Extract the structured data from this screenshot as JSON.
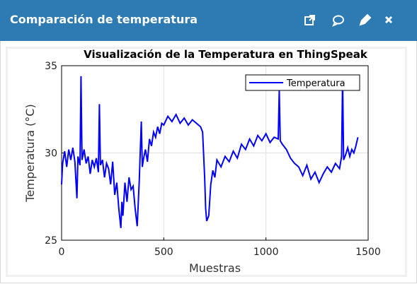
{
  "header": {
    "title": "Comparación de temperatura"
  },
  "chart_data": {
    "type": "line",
    "title": "Visualización de la Temperatura en ThingSpeak",
    "x_label": "Muestras",
    "y_label": "Temperatura (°C)",
    "xlim": [
      0,
      1500
    ],
    "xticks": [
      0,
      500,
      1000,
      1500
    ],
    "ylim": [
      25,
      35
    ],
    "yticks": [
      25,
      30,
      35
    ],
    "grid": true,
    "legend": "upper right",
    "x": [
      0,
      5,
      15,
      25,
      35,
      45,
      55,
      65,
      75,
      80,
      90,
      95,
      100,
      110,
      120,
      130,
      140,
      150,
      160,
      170,
      180,
      185,
      190,
      200,
      210,
      220,
      230,
      240,
      250,
      260,
      270,
      280,
      290,
      295,
      300,
      310,
      320,
      330,
      340,
      350,
      360,
      370,
      380,
      390,
      395,
      400,
      410,
      420,
      430,
      440,
      450,
      460,
      470,
      480,
      490,
      500,
      520,
      540,
      560,
      580,
      600,
      620,
      640,
      660,
      680,
      690,
      700,
      705,
      710,
      720,
      730,
      740,
      750,
      760,
      780,
      800,
      820,
      840,
      860,
      880,
      900,
      920,
      940,
      960,
      980,
      1000,
      1020,
      1040,
      1060,
      1065,
      1070,
      1080,
      1100,
      1120,
      1140,
      1160,
      1180,
      1200,
      1220,
      1240,
      1260,
      1280,
      1300,
      1320,
      1340,
      1360,
      1370,
      1375,
      1380,
      1390,
      1400,
      1410,
      1420,
      1430,
      1440,
      1450
    ],
    "series": [
      {
        "name": "Temperatura",
        "color": "#0000ff",
        "values": [
          28.2,
          29.4,
          30.1,
          29.2,
          30.2,
          29.6,
          30.3,
          29.5,
          27.4,
          29.8,
          29.3,
          34.4,
          29.6,
          30.2,
          29.4,
          29.8,
          28.8,
          29.6,
          29.2,
          29.7,
          28.9,
          32.8,
          29.3,
          29.6,
          28.6,
          29.4,
          29.1,
          28.2,
          29.5,
          27.6,
          28.3,
          26.8,
          25.7,
          27.2,
          26.4,
          28.3,
          27.2,
          28.6,
          27.9,
          28.1,
          26.8,
          25.8,
          28.4,
          31.8,
          29.2,
          29.6,
          30.2,
          29.5,
          30.8,
          30.4,
          31.2,
          30.9,
          31.5,
          31.1,
          31.7,
          31.6,
          32.1,
          31.8,
          32.2,
          31.7,
          32.0,
          31.6,
          31.9,
          31.7,
          31.5,
          31.2,
          28.6,
          26.8,
          26.1,
          26.4,
          28.2,
          29.0,
          28.6,
          29.6,
          29.2,
          29.8,
          29.5,
          30.1,
          29.7,
          30.5,
          30.2,
          30.8,
          30.4,
          31.0,
          30.7,
          31.1,
          30.6,
          30.9,
          30.8,
          33.6,
          30.7,
          30.5,
          30.2,
          29.7,
          29.4,
          29.2,
          28.7,
          29.3,
          28.5,
          28.9,
          28.3,
          28.8,
          29.2,
          28.9,
          29.4,
          29.1,
          29.8,
          34.3,
          29.6,
          29.9,
          30.3,
          29.8,
          30.2,
          30.0,
          30.4,
          30.9
        ]
      }
    ]
  }
}
